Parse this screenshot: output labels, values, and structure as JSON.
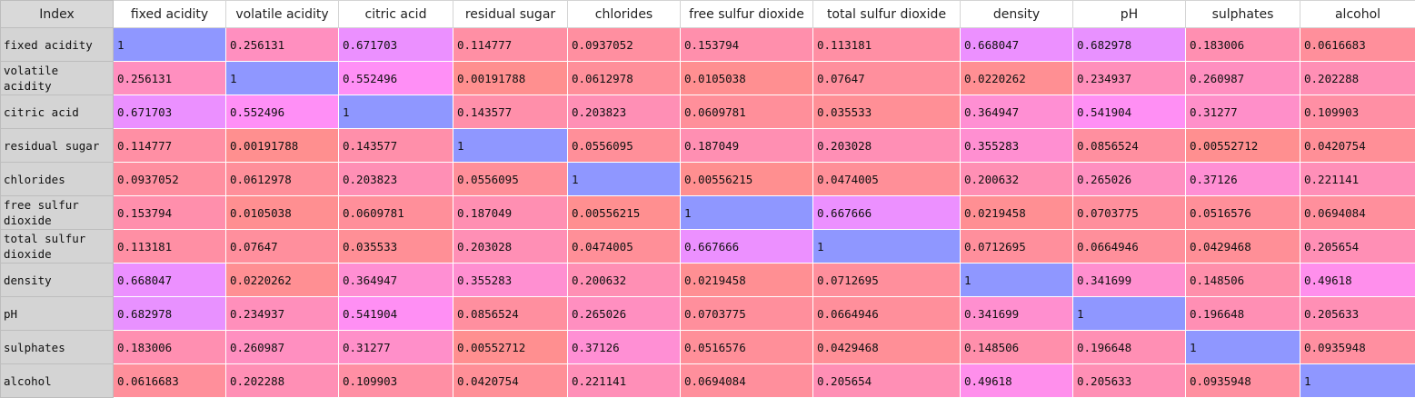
{
  "corner_label": "Index",
  "columns": [
    "fixed acidity",
    "volatile acidity",
    "citric acid",
    "residual sugar",
    "chlorides",
    "free sulfur dioxide",
    "total sulfur dioxide",
    "density",
    "pH",
    "sulphates",
    "alcohol"
  ],
  "rows": [
    {
      "label": "fixed acidity",
      "values": [
        "1",
        "0.256131",
        "0.671703",
        "0.114777",
        "0.0937052",
        "0.153794",
        "0.113181",
        "0.668047",
        "0.682978",
        "0.183006",
        "0.0616683"
      ]
    },
    {
      "label": "volatile acidity",
      "values": [
        "0.256131",
        "1",
        "0.552496",
        "0.00191788",
        "0.0612978",
        "0.0105038",
        "0.07647",
        "0.0220262",
        "0.234937",
        "0.260987",
        "0.202288"
      ]
    },
    {
      "label": "citric acid",
      "values": [
        "0.671703",
        "0.552496",
        "1",
        "0.143577",
        "0.203823",
        "0.0609781",
        "0.035533",
        "0.364947",
        "0.541904",
        "0.31277",
        "0.109903"
      ]
    },
    {
      "label": "residual sugar",
      "values": [
        "0.114777",
        "0.00191788",
        "0.143577",
        "1",
        "0.0556095",
        "0.187049",
        "0.203028",
        "0.355283",
        "0.0856524",
        "0.00552712",
        "0.0420754"
      ]
    },
    {
      "label": "chlorides",
      "values": [
        "0.0937052",
        "0.0612978",
        "0.203823",
        "0.0556095",
        "1",
        "0.00556215",
        "0.0474005",
        "0.200632",
        "0.265026",
        "0.37126",
        "0.221141"
      ]
    },
    {
      "label": "free sulfur dioxide",
      "values": [
        "0.153794",
        "0.0105038",
        "0.0609781",
        "0.187049",
        "0.00556215",
        "1",
        "0.667666",
        "0.0219458",
        "0.0703775",
        "0.0516576",
        "0.0694084"
      ]
    },
    {
      "label": "total sulfur dioxide",
      "values": [
        "0.113181",
        "0.07647",
        "0.035533",
        "0.203028",
        "0.0474005",
        "0.667666",
        "1",
        "0.0712695",
        "0.0664946",
        "0.0429468",
        "0.205654"
      ]
    },
    {
      "label": "density",
      "values": [
        "0.668047",
        "0.0220262",
        "0.364947",
        "0.355283",
        "0.200632",
        "0.0219458",
        "0.0712695",
        "1",
        "0.341699",
        "0.148506",
        "0.49618"
      ]
    },
    {
      "label": "pH",
      "values": [
        "0.682978",
        "0.234937",
        "0.541904",
        "0.0856524",
        "0.265026",
        "0.0703775",
        "0.0664946",
        "0.341699",
        "1",
        "0.196648",
        "0.205633"
      ]
    },
    {
      "label": "sulphates",
      "values": [
        "0.183006",
        "0.260987",
        "0.31277",
        "0.00552712",
        "0.37126",
        "0.0516576",
        "0.0429468",
        "0.148506",
        "0.196648",
        "1",
        "0.0935948"
      ]
    },
    {
      "label": "alcohol",
      "values": [
        "0.0616683",
        "0.202288",
        "0.109903",
        "0.0420754",
        "0.221141",
        "0.0694084",
        "0.205654",
        "0.49618",
        "0.205633",
        "0.0935948",
        "1"
      ]
    }
  ],
  "colors": {
    "low": "#ff8f8f",
    "mid": "#ff8fff",
    "high": "#8f97ff",
    "header_bg": "#ffffff",
    "index_bg": "#d4d4d4"
  }
}
